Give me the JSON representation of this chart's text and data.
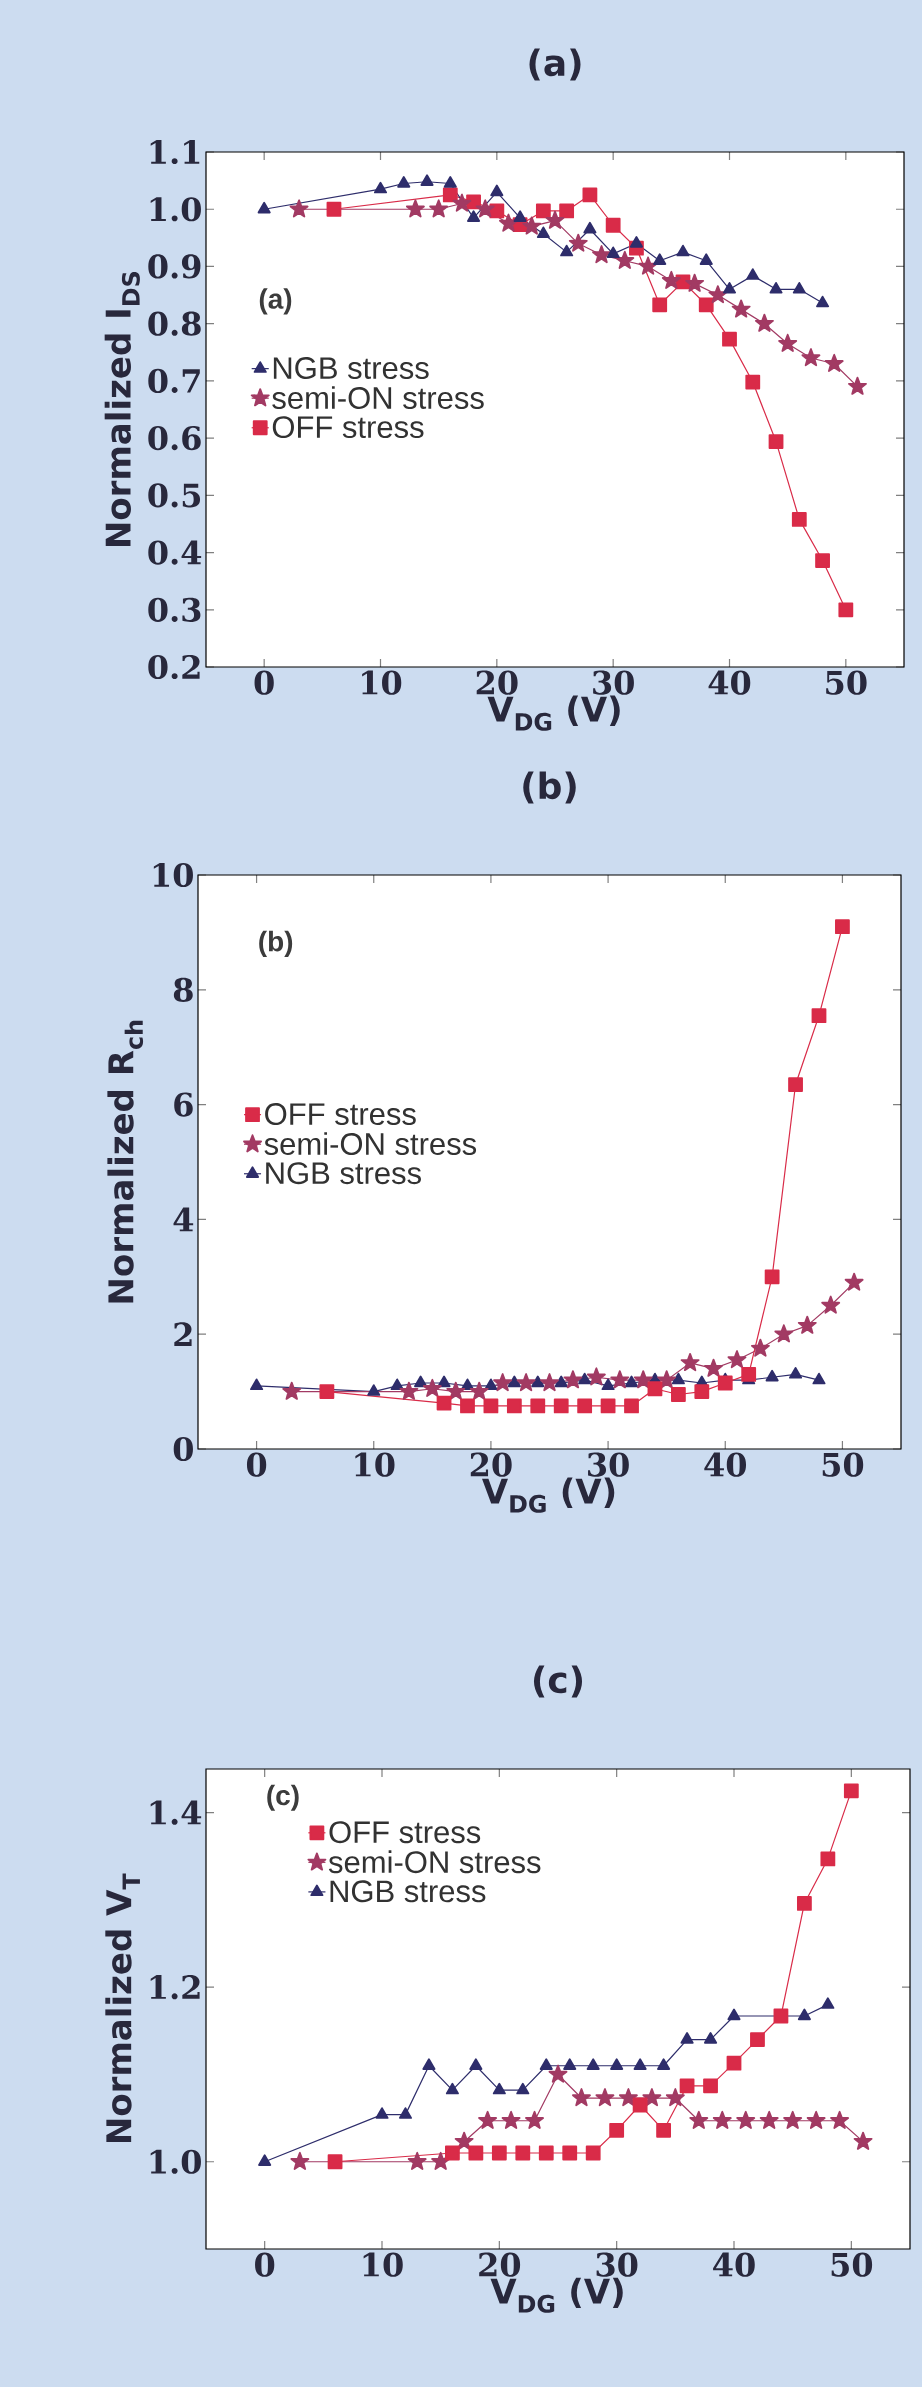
{
  "chart_data": [
    {
      "type": "line",
      "title": "(a)",
      "xlabel": "V$_{DG}$ (V)",
      "ylabel": "Normalized I$_{DS}$",
      "annotations": [
        "(a)"
      ],
      "xlim": [
        -5,
        55
      ],
      "xticks": [
        0,
        10,
        20,
        30,
        40,
        50
      ],
      "ylim": [
        0.2,
        1.1
      ],
      "yticks": [
        0.2,
        0.3,
        0.4,
        0.5,
        0.6,
        0.7,
        0.8,
        0.9,
        {
          "value": 1.0,
          "label": "1.0"
        },
        1.1
      ],
      "legend": "center left",
      "line_style": "solid",
      "series": [
        {
          "name": "NGB stress",
          "color": "#2e2d6b",
          "marker": "triangle",
          "x": [
            0,
            10,
            12,
            14,
            16,
            18,
            20,
            22,
            24,
            26,
            28,
            30,
            32,
            34,
            36,
            38,
            40,
            42,
            44,
            46,
            48
          ],
          "values": [
            1.0,
            1.035,
            1.045,
            1.048,
            1.045,
            0.985,
            1.03,
            0.985,
            0.957,
            0.925,
            0.965,
            0.922,
            0.94,
            0.91,
            0.925,
            0.91,
            0.86,
            0.884,
            0.86,
            0.86,
            0.836
          ]
        },
        {
          "name": "semi-ON stress",
          "color": "#a23a63",
          "marker": "star",
          "x": [
            3,
            13,
            15,
            17,
            19,
            21,
            23,
            25,
            27,
            29,
            31,
            33,
            35,
            37,
            39,
            41,
            43,
            45,
            47,
            49,
            51
          ],
          "values": [
            1.0,
            1.0,
            1.0,
            1.01,
            1.0,
            0.975,
            0.97,
            0.98,
            0.94,
            0.92,
            0.91,
            0.9,
            0.875,
            0.87,
            0.85,
            0.825,
            0.8,
            0.765,
            0.74,
            0.73,
            0.69
          ]
        },
        {
          "name": "OFF stress",
          "color": "#d92b48",
          "marker": "square",
          "x": [
            6,
            16,
            18,
            20,
            22,
            24,
            26,
            28,
            30,
            32,
            34,
            36,
            38,
            40,
            42,
            44,
            46,
            48,
            50
          ],
          "values": [
            1.0,
            1.025,
            1.013,
            0.997,
            0.973,
            0.997,
            0.997,
            1.025,
            0.972,
            0.932,
            0.833,
            0.873,
            0.833,
            0.773,
            0.698,
            0.594,
            0.458,
            0.386,
            0.3
          ]
        }
      ]
    },
    {
      "type": "line",
      "title": "(b)",
      "xlabel": "V$_{DG}$ (V)",
      "ylabel": "Normalized R$_{ch}$",
      "annotations": [
        "(b)"
      ],
      "xlim": [
        -5,
        55
      ],
      "xticks": [
        0,
        10,
        20,
        30,
        40,
        50
      ],
      "ylim": [
        0,
        10
      ],
      "yticks": [
        0,
        2,
        4,
        6,
        8,
        10
      ],
      "legend": "center left",
      "line_style": "solid",
      "series": [
        {
          "name": "OFF stress",
          "color": "#d92b48",
          "marker": "square",
          "x": [
            6,
            16,
            18,
            20,
            22,
            24,
            26,
            28,
            30,
            32,
            34,
            36,
            38,
            40,
            42,
            44,
            46,
            48,
            50
          ],
          "values": [
            1.0,
            0.8,
            0.75,
            0.75,
            0.75,
            0.75,
            0.75,
            0.75,
            0.75,
            0.75,
            1.05,
            0.95,
            1.0,
            1.15,
            1.3,
            3.0,
            6.35,
            7.55,
            9.1
          ]
        },
        {
          "name": "semi-ON stress",
          "color": "#a23a63",
          "marker": "star",
          "x": [
            3,
            13,
            15,
            17,
            19,
            21,
            23,
            25,
            27,
            29,
            31,
            33,
            35,
            37,
            39,
            41,
            43,
            45,
            47,
            49,
            51
          ],
          "values": [
            1.0,
            1.0,
            1.05,
            1.0,
            1.0,
            1.15,
            1.15,
            1.15,
            1.2,
            1.25,
            1.2,
            1.2,
            1.2,
            1.5,
            1.4,
            1.55,
            1.75,
            2.0,
            2.15,
            2.5,
            2.9
          ]
        },
        {
          "name": "NGB stress",
          "color": "#2e2d6b",
          "marker": "triangle",
          "x": [
            0,
            10,
            12,
            14,
            16,
            18,
            20,
            22,
            24,
            26,
            28,
            30,
            32,
            34,
            36,
            38,
            40,
            42,
            44,
            46,
            48
          ],
          "values": [
            1.1,
            1.0,
            1.1,
            1.15,
            1.15,
            1.1,
            1.1,
            1.15,
            1.15,
            1.15,
            1.2,
            1.1,
            1.15,
            1.2,
            1.2,
            1.15,
            1.2,
            1.2,
            1.25,
            1.3,
            1.2
          ]
        }
      ]
    },
    {
      "type": "line",
      "title": "(c)",
      "xlabel": "V$_{DG}$ (V)",
      "ylabel": "Normalized V$_{T}$",
      "annotations": [
        "(c)"
      ],
      "xlim": [
        -5,
        55
      ],
      "xticks": [
        0,
        10,
        20,
        30,
        40,
        50
      ],
      "ylim": [
        0.9,
        1.45
      ],
      "yticks": [
        {
          "value": 1.0,
          "label": "1.0"
        },
        1.2,
        1.4
      ],
      "legend": "top left",
      "line_style": "solid",
      "series": [
        {
          "name": "OFF stress",
          "color": "#d92b48",
          "marker": "square",
          "x": [
            6,
            16,
            18,
            20,
            22,
            24,
            26,
            28,
            30,
            32,
            34,
            36,
            38,
            40,
            42,
            44,
            46,
            48,
            50
          ],
          "values": [
            1.0,
            1.01,
            1.01,
            1.01,
            1.01,
            1.01,
            1.01,
            1.01,
            1.036,
            1.065,
            1.036,
            1.087,
            1.087,
            1.113,
            1.14,
            1.167,
            1.296,
            1.347,
            1.425
          ]
        },
        {
          "name": "semi-ON stress",
          "color": "#a23a63",
          "marker": "star",
          "x": [
            3,
            13,
            15,
            17,
            19,
            21,
            23,
            25,
            27,
            29,
            31,
            33,
            35,
            37,
            39,
            41,
            43,
            45,
            47,
            49,
            51
          ],
          "values": [
            1.0,
            1.0,
            1.0,
            1.023,
            1.047,
            1.047,
            1.047,
            1.1,
            1.073,
            1.073,
            1.073,
            1.073,
            1.073,
            1.047,
            1.047,
            1.047,
            1.047,
            1.047,
            1.047,
            1.047,
            1.023
          ]
        },
        {
          "name": "NGB stress",
          "color": "#2e2d6b",
          "marker": "triangle",
          "x": [
            0,
            10,
            12,
            14,
            16,
            18,
            20,
            22,
            24,
            26,
            28,
            30,
            32,
            34,
            36,
            38,
            40,
            46,
            48
          ],
          "values": [
            1.0,
            1.054,
            1.054,
            1.11,
            1.082,
            1.11,
            1.082,
            1.082,
            1.11,
            1.11,
            1.11,
            1.11,
            1.11,
            1.11,
            1.14,
            1.14,
            1.167,
            1.167,
            1.18
          ]
        }
      ]
    }
  ]
}
